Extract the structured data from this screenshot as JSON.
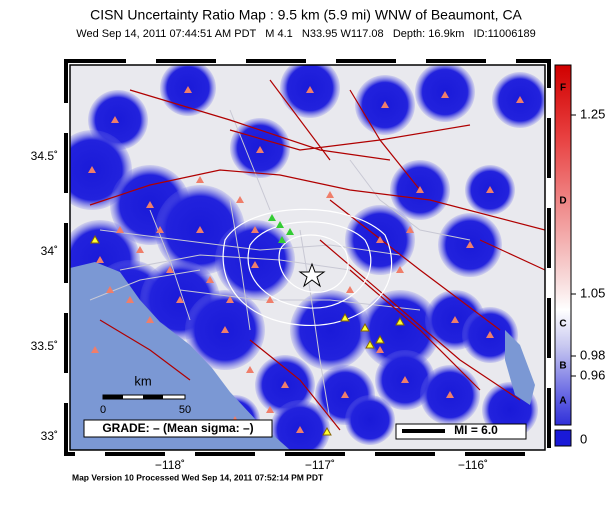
{
  "header": {
    "title": "CISN Uncertainty Ratio Map : 9.5 km (5.9 mi) WNW of Beaumont, CA",
    "subtitle": "Wed Sep 14, 2011 07:44:51 AM PDT   M 4.1   N33.95 W117.08   Depth: 16.9km   ID:11006189"
  },
  "map": {
    "lat_labels": [
      "34.5˚",
      "34˚",
      "33.5˚",
      "33˚"
    ],
    "lon_labels": [
      "−118˚",
      "−117˚",
      "−116˚"
    ],
    "scale_bar": {
      "unit": "km",
      "start": "0",
      "end": "50"
    },
    "grade": "GRADE: – (Mean sigma: –)",
    "mi_legend": "MI = 6.0"
  },
  "colorbar": {
    "grades": [
      "F",
      "D",
      "C",
      "B",
      "A"
    ],
    "labels": [
      "1.25",
      "1.05",
      "0.98",
      "0.96",
      "0"
    ]
  },
  "footer": "Map Version 10 Processed Wed Sep 14, 2011 07:52:14 PM PDT"
}
